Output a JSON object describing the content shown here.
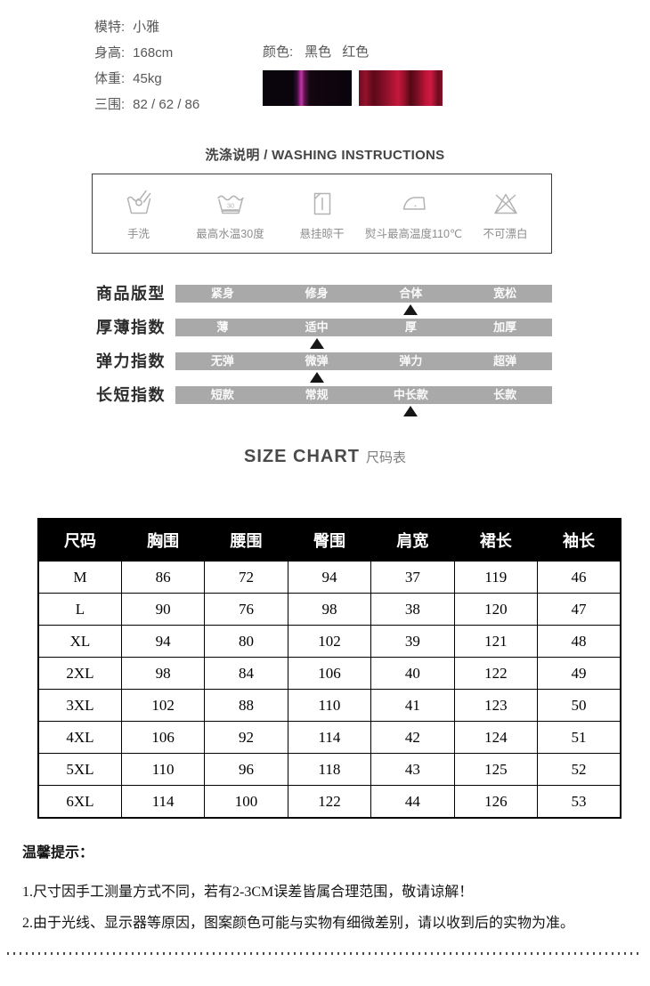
{
  "model_info": {
    "lines": [
      {
        "label": "模特:",
        "value": "小雅"
      },
      {
        "label": "身高:",
        "value": "168cm"
      },
      {
        "label": "体重:",
        "value": "45kg"
      },
      {
        "label": "三围:",
        "value": "82 / 62 / 86"
      }
    ]
  },
  "colors": {
    "label": "颜色:",
    "options": [
      {
        "name": "黑色",
        "swatch": "black"
      },
      {
        "name": "红色",
        "swatch": "red"
      }
    ]
  },
  "washing": {
    "title": "洗涤说明 / WASHING INSTRUCTIONS",
    "items": [
      {
        "icon": "hand-wash-icon",
        "label": "手洗"
      },
      {
        "icon": "max-water-temp-30-icon",
        "label": "最高水温30度"
      },
      {
        "icon": "hang-dry-icon",
        "label": "悬挂晾干"
      },
      {
        "icon": "iron-max-110-icon",
        "label": "熨斗最高温度110℃"
      },
      {
        "icon": "no-bleach-icon",
        "label": "不可漂白"
      }
    ]
  },
  "attributes": {
    "rows": [
      {
        "label": "商品版型",
        "options": [
          "紧身",
          "修身",
          "合体",
          "宽松"
        ],
        "selected_index": 2
      },
      {
        "label": "厚薄指数",
        "options": [
          "薄",
          "适中",
          "厚",
          "加厚"
        ],
        "selected_index": 1
      },
      {
        "label": "弹力指数",
        "options": [
          "无弹",
          "微弹",
          "弹力",
          "超弹"
        ],
        "selected_index": 1
      },
      {
        "label": "长短指数",
        "options": [
          "短款",
          "常规",
          "中长款",
          "长款"
        ],
        "selected_index": 2
      }
    ]
  },
  "size_chart": {
    "title_en": "SIZE CHART",
    "title_zh": "尺码表",
    "columns": [
      "尺码",
      "胸围",
      "腰围",
      "臀围",
      "肩宽",
      "裙长",
      "袖长"
    ],
    "rows": [
      [
        "M",
        "86",
        "72",
        "94",
        "37",
        "119",
        "46"
      ],
      [
        "L",
        "90",
        "76",
        "98",
        "38",
        "120",
        "47"
      ],
      [
        "XL",
        "94",
        "80",
        "102",
        "39",
        "121",
        "48"
      ],
      [
        "2XL",
        "98",
        "84",
        "106",
        "40",
        "122",
        "49"
      ],
      [
        "3XL",
        "102",
        "88",
        "110",
        "41",
        "123",
        "50"
      ],
      [
        "4XL",
        "106",
        "92",
        "114",
        "42",
        "124",
        "51"
      ],
      [
        "5XL",
        "110",
        "96",
        "118",
        "43",
        "125",
        "52"
      ],
      [
        "6XL",
        "114",
        "100",
        "122",
        "44",
        "126",
        "53"
      ]
    ]
  },
  "tips": {
    "title": "温馨提示：",
    "lines": [
      "1.尺寸因手工测量方式不同，若有2-3CM误差皆属合理范围，敬请谅解！",
      "2.由于光线、显示器等原因，图案颜色可能与实物有细微差别，请以收到后的实物为准。"
    ]
  },
  "theme": {
    "text_gray": "#585858",
    "icon_gray": "#b3b3b3",
    "icon_label_gray": "#8e8e8e",
    "bar_gray": "#a9a9a9",
    "bar_text": "#fafafa",
    "arrow_black": "#161616",
    "table_header_bg": "#000000",
    "table_header_text": "#ffffff",
    "swatch_black": "#0a040c",
    "swatch_black_streak": "#b02a96",
    "swatch_red": "#8c1028",
    "swatch_red_highlight": "#c5173c"
  }
}
